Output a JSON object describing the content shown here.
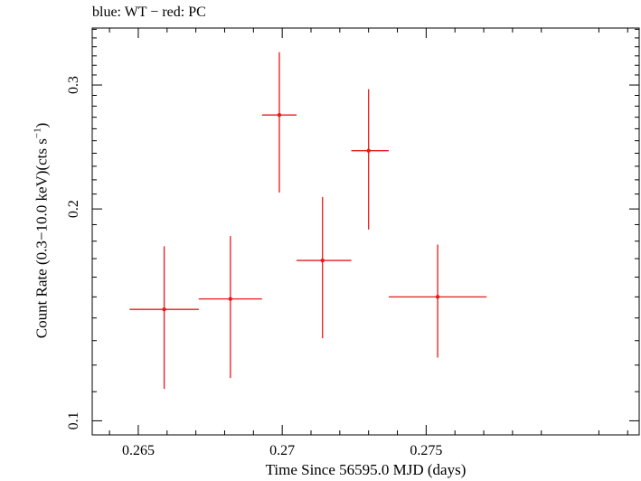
{
  "chart_data": {
    "type": "scatter",
    "title": "blue: WT − red: PC",
    "xlabel": "Time Since 56595.0 MJD (days)",
    "ylabel": {
      "main": "Count Rate (0.3−10.0 keV)(cts s",
      "sup": "−1",
      "end": ")"
    },
    "xlim": [
      0.2634,
      0.2824
    ],
    "ylim": [
      0.0955,
      0.3615
    ],
    "y_scale": "log",
    "x_ticks": [
      {
        "value": 0.265,
        "label": "0.265"
      },
      {
        "value": 0.27,
        "label": "0.27"
      },
      {
        "value": 0.275,
        "label": "0.275"
      }
    ],
    "y_ticks": [
      {
        "value": 0.1,
        "label": "0.1"
      },
      {
        "value": 0.2,
        "label": "0.2"
      },
      {
        "value": 0.3,
        "label": "0.3"
      }
    ],
    "grid": false,
    "series": [
      {
        "color": "#e8191c",
        "points": [
          {
            "x": 0.2659,
            "y": 0.144,
            "xlo": 0.2647,
            "xhi": 0.2671,
            "ylo": 0.111,
            "yhi": 0.177
          },
          {
            "x": 0.2682,
            "y": 0.149,
            "xlo": 0.2671,
            "xhi": 0.2693,
            "ylo": 0.115,
            "yhi": 0.183
          },
          {
            "x": 0.2699,
            "y": 0.272,
            "xlo": 0.2693,
            "xhi": 0.2705,
            "ylo": 0.211,
            "yhi": 0.334
          },
          {
            "x": 0.2714,
            "y": 0.169,
            "xlo": 0.2705,
            "xhi": 0.2724,
            "ylo": 0.131,
            "yhi": 0.208
          },
          {
            "x": 0.273,
            "y": 0.242,
            "xlo": 0.2724,
            "xhi": 0.2737,
            "ylo": 0.187,
            "yhi": 0.296
          },
          {
            "x": 0.2754,
            "y": 0.15,
            "xlo": 0.2737,
            "xhi": 0.2771,
            "ylo": 0.123,
            "yhi": 0.178
          }
        ]
      }
    ]
  }
}
